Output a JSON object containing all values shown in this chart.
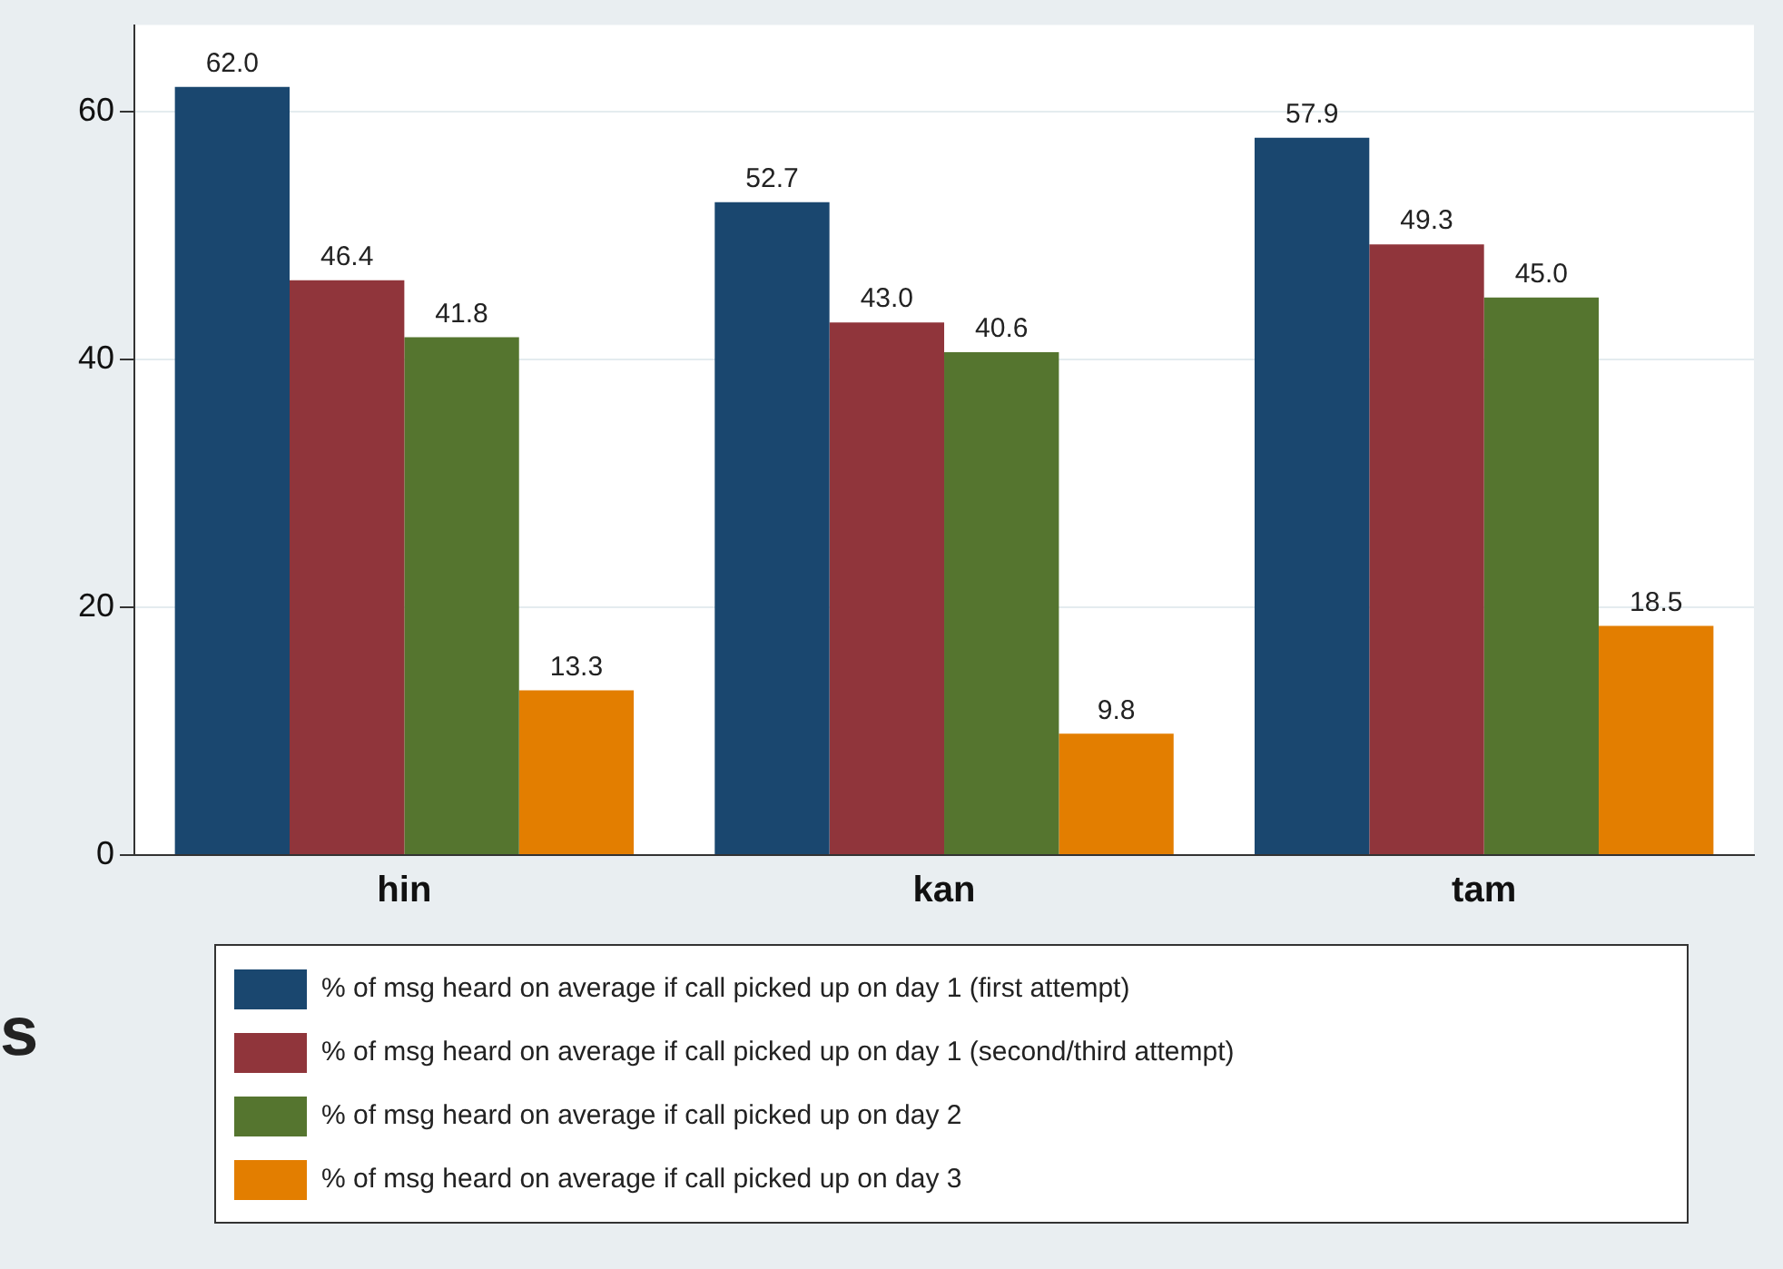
{
  "chart_data": {
    "type": "bar",
    "categories": [
      "hin",
      "kan",
      "tam"
    ],
    "series": [
      {
        "name": "% of msg heard on average if call picked up on day 1 (first attempt)",
        "color": "#1a476f",
        "values": [
          62.0,
          52.7,
          57.9
        ]
      },
      {
        "name": "% of msg heard on average if call picked up on day 1 (second/third attempt)",
        "color": "#90353b",
        "values": [
          46.4,
          43.0,
          49.3
        ]
      },
      {
        "name": "% of msg heard on average if call picked up on day 2",
        "color": "#55752f",
        "values": [
          41.8,
          40.6,
          45.0
        ]
      },
      {
        "name": "% of msg heard on average if call picked up on day 3",
        "color": "#e37e00",
        "values": [
          13.3,
          9.8,
          18.5
        ]
      }
    ],
    "value_labels": [
      [
        "62.0",
        "52.7",
        "57.9"
      ],
      [
        "46.4",
        "43.0",
        "49.3"
      ],
      [
        "41.8",
        "40.6",
        "45.0"
      ],
      [
        "13.3",
        "9.8",
        "18.5"
      ]
    ],
    "ylim": [
      0,
      67
    ],
    "yticks": [
      0,
      20,
      40,
      60
    ],
    "grid": "y",
    "legend": "bottom",
    "annotations": [
      "s"
    ]
  }
}
